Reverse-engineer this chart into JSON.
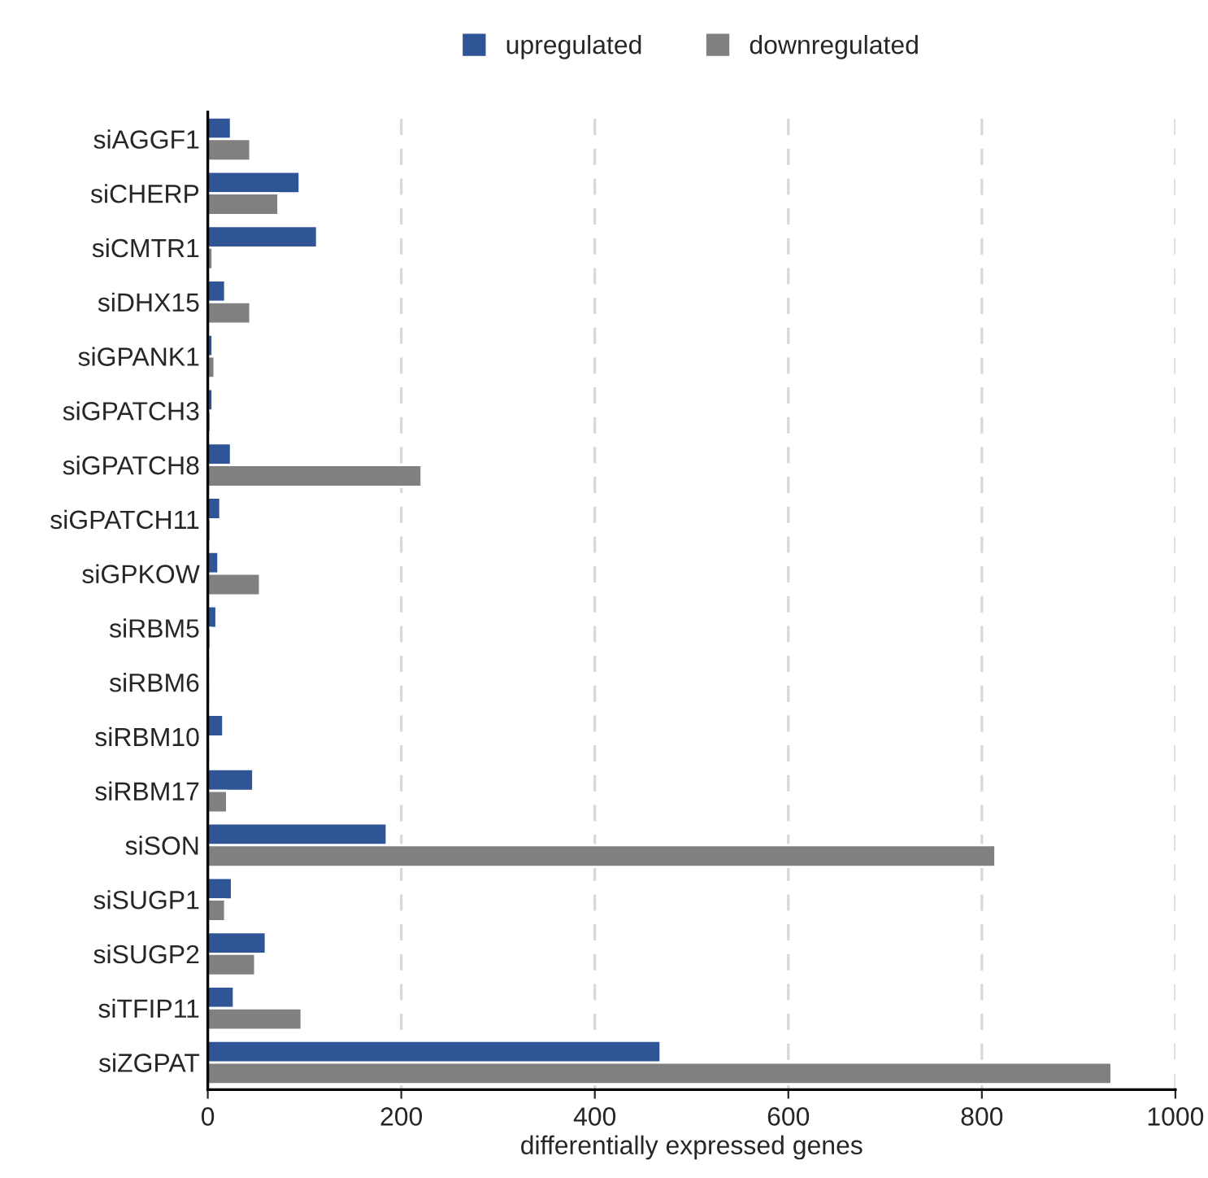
{
  "chart_data": {
    "type": "bar",
    "orientation": "horizontal",
    "xlabel": "differentially expressed genes",
    "categories": [
      "siAGGF1",
      "siCHERP",
      "siCMTR1",
      "siDHX15",
      "siGPANK1",
      "siGPATCH3",
      "siGPATCH8",
      "siGPATCH11",
      "siGPKOW",
      "siRBM5",
      "siRBM6",
      "siRBM10",
      "siRBM17",
      "siSON",
      "siSUGP1",
      "siSUGP2",
      "siTFIP11",
      "siZGPAT"
    ],
    "series": [
      {
        "name": "upregulated",
        "color": "#2f5597",
        "values": [
          24,
          95,
          113,
          18,
          5,
          5,
          24,
          13,
          11,
          9,
          0,
          16,
          47,
          185,
          25,
          60,
          27,
          468
        ]
      },
      {
        "name": "downregulated",
        "color": "#808080",
        "values": [
          44,
          73,
          5,
          44,
          7,
          3,
          221,
          3,
          54,
          3,
          0,
          0,
          20,
          814,
          18,
          49,
          97,
          934
        ]
      }
    ],
    "xlim": [
      0,
      1000
    ],
    "xticks": [
      0,
      200,
      400,
      600,
      800,
      1000
    ],
    "grid": "x",
    "legend": "top"
  }
}
